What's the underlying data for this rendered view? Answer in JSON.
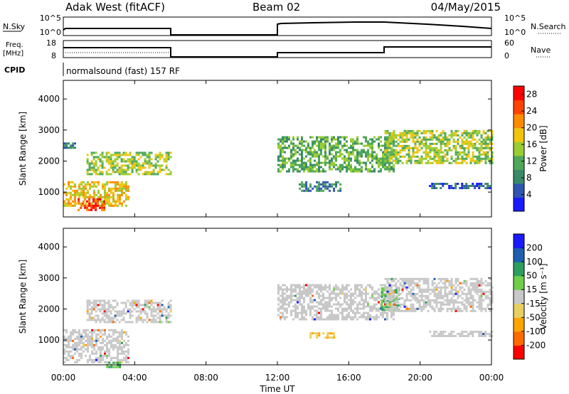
{
  "header": {
    "station": "Adak West (fitACF)",
    "beam": "Beam 02",
    "date": "04/May/2015"
  },
  "strip_labels": {
    "nsky": "N.Sky",
    "nsky_ticks": [
      "10^5",
      "10^0"
    ],
    "nsearch": "N.Search",
    "nsearch_ticks": [
      "10^5",
      "10^0"
    ],
    "freq_line1": "Freq.",
    "freq_line2": "[MHz]",
    "freq_ticks": [
      "18",
      "8"
    ],
    "nave": "Nave",
    "nave_ticks": [
      "60",
      "0"
    ],
    "cpid": "CPID",
    "mode": "normalsound (fast) 157 RF"
  },
  "colors": {
    "power": [
      "#1a1aff",
      "#2f55b0",
      "#3a8a6a",
      "#4fa85a",
      "#9acd32",
      "#f2c40d",
      "#ff8c00",
      "#ff4400",
      "#ff0000"
    ],
    "velocity": [
      "#ff0000",
      "#ff6a00",
      "#ffa500",
      "#e8d060",
      "#c8c8c8",
      "#6fcf4a",
      "#2e9e5e",
      "#1e5fb0",
      "#1a1aff"
    ],
    "scatter_grey": "#c8c8c8",
    "frame": "#000000"
  },
  "chart_data": [
    {
      "type": "heatmap",
      "title": "Power",
      "xlabel": "Time UT",
      "ylabel": "Slant Range [km]",
      "ylim": [
        200,
        4600
      ],
      "xlim_hours": [
        0,
        24
      ],
      "x_ticks": [
        "00:00",
        "04:00",
        "08:00",
        "12:00",
        "16:00",
        "20:00",
        "00:00"
      ],
      "y_ticks": [
        1000,
        2000,
        3000,
        4000
      ],
      "colorbar": {
        "label": "Power [dB]",
        "ticks": [
          4,
          8,
          12,
          16,
          20,
          24,
          28
        ],
        "range": [
          0,
          30
        ]
      },
      "data_gap_hours": [
        6,
        12
      ],
      "echo_regions": [
        {
          "t_start": 0.0,
          "t_end": 3.6,
          "range_km": [
            550,
            1350
          ],
          "power_db": 20
        },
        {
          "t_start": 0.8,
          "t_end": 2.3,
          "range_km": [
            400,
            800
          ],
          "power_db": 28
        },
        {
          "t_start": 0.0,
          "t_end": 0.7,
          "range_km": [
            2450,
            2600
          ],
          "power_db": 6
        },
        {
          "t_start": 1.3,
          "t_end": 6.0,
          "range_km": [
            1600,
            2300
          ],
          "power_db": 14
        },
        {
          "t_start": 12.0,
          "t_end": 18.5,
          "range_km": [
            1700,
            2800
          ],
          "power_db": 10
        },
        {
          "t_start": 13.2,
          "t_end": 15.5,
          "range_km": [
            1050,
            1350
          ],
          "power_db": 6
        },
        {
          "t_start": 18.0,
          "t_end": 24.0,
          "range_km": [
            1900,
            3000
          ],
          "power_db": 16
        },
        {
          "t_start": 20.5,
          "t_end": 24.0,
          "range_km": [
            1100,
            1300
          ],
          "power_db": 5
        }
      ]
    },
    {
      "type": "heatmap",
      "title": "Velocity",
      "xlabel": "Time UT",
      "ylabel": "Slant Range [km]",
      "ylim": [
        200,
        4600
      ],
      "xlim_hours": [
        0,
        24
      ],
      "x_ticks": [
        "00:00",
        "04:00",
        "08:00",
        "12:00",
        "16:00",
        "20:00",
        "00:00"
      ],
      "y_ticks": [
        1000,
        2000,
        3000,
        4000
      ],
      "colorbar": {
        "label": "Velocity [m s⁻¹]",
        "ticks": [
          "200",
          "100",
          "50",
          "15",
          "-15",
          "-50",
          "-100",
          "-200"
        ],
        "range": [
          -250,
          250
        ]
      },
      "data_gap_hours": [
        6,
        12
      ],
      "echo_regions": [
        {
          "t_start": 0.0,
          "t_end": 3.6,
          "range_km": [
            300,
            1350
          ],
          "velocity": 0
        },
        {
          "t_start": 2.4,
          "t_end": 3.2,
          "range_km": [
            150,
            300
          ],
          "velocity": 40
        },
        {
          "t_start": 1.3,
          "t_end": 6.0,
          "range_km": [
            1600,
            2300
          ],
          "velocity": 0
        },
        {
          "t_start": 12.0,
          "t_end": 18.5,
          "range_km": [
            1700,
            2800
          ],
          "velocity": 0
        },
        {
          "t_start": 13.8,
          "t_end": 15.2,
          "range_km": [
            1050,
            1250
          ],
          "velocity": -70
        },
        {
          "t_start": 17.8,
          "t_end": 18.8,
          "range_km": [
            2000,
            2700
          ],
          "velocity": 40
        },
        {
          "t_start": 18.0,
          "t_end": 24.0,
          "range_km": [
            1900,
            3000
          ],
          "velocity": 0
        },
        {
          "t_start": 20.5,
          "t_end": 24.0,
          "range_km": [
            1100,
            1300
          ],
          "velocity": 0
        }
      ]
    }
  ]
}
